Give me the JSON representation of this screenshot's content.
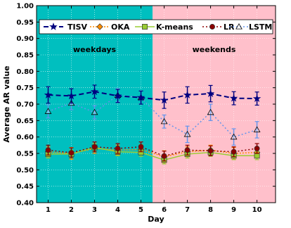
{
  "chart_data": {
    "type": "line",
    "xlabel": "Day",
    "ylabel": "Average AR value",
    "x": [
      1,
      2,
      3,
      4,
      5,
      6,
      7,
      8,
      9,
      10
    ],
    "x_ticks": [
      "1",
      "2",
      "3",
      "4",
      "5",
      "6",
      "7",
      "8",
      "9",
      "10"
    ],
    "xlim": [
      0.5,
      10.8
    ],
    "ylim": [
      0.4,
      1.0
    ],
    "y_ticks": [
      "0.40",
      "0.45",
      "0.50",
      "0.55",
      "0.60",
      "0.65",
      "0.70",
      "0.75",
      "0.80",
      "0.85",
      "0.90",
      "0.95",
      "1.00"
    ],
    "regions": [
      {
        "label": "weekdays",
        "x_range": [
          0.5,
          5.5
        ],
        "color": "#00bfbf"
      },
      {
        "label": "weekends",
        "x_range": [
          5.5,
          10.8
        ],
        "color": "#ffc0cb"
      }
    ],
    "legend_position": "top",
    "series": [
      {
        "name": "TISV",
        "color": "#000080",
        "marker": "star",
        "dash": "7,4",
        "values": [
          0.728,
          0.725,
          0.738,
          0.725,
          0.72,
          0.712,
          0.728,
          0.732,
          0.718,
          0.717
        ],
        "errors": [
          0.025,
          0.022,
          0.02,
          0.02,
          0.02,
          0.025,
          0.025,
          0.025,
          0.02,
          0.02
        ]
      },
      {
        "name": "OKA",
        "color": "#ff8c00",
        "marker": "diamond",
        "dash": "2,2",
        "values": [
          0.555,
          0.55,
          0.565,
          0.56,
          0.562,
          0.54,
          0.555,
          0.56,
          0.55,
          0.553
        ],
        "errors": [
          0.015,
          0.018,
          0.015,
          0.015,
          0.015,
          0.018,
          0.015,
          0.015,
          0.018,
          0.015
        ]
      },
      {
        "name": "K-means",
        "color": "#9acd32",
        "marker": "square",
        "dash": "",
        "values": [
          0.548,
          0.548,
          0.568,
          0.555,
          0.553,
          0.53,
          0.548,
          0.553,
          0.543,
          0.543
        ],
        "errors": [
          0.012,
          0.012,
          0.012,
          0.012,
          0.012,
          0.012,
          0.012,
          0.012,
          0.012,
          0.012
        ]
      },
      {
        "name": "LR",
        "color": "#8b0000",
        "marker": "circle",
        "dash": "2,3",
        "values": [
          0.56,
          0.552,
          0.57,
          0.565,
          0.57,
          0.542,
          0.56,
          0.558,
          0.555,
          0.565
        ],
        "errors": [
          0.015,
          0.015,
          0.015,
          0.015,
          0.015,
          0.015,
          0.015,
          0.015,
          0.015,
          0.015
        ]
      },
      {
        "name": "LSTM",
        "color": "#6495ed",
        "marker": "triangle",
        "dash": "2,3",
        "values": [
          0.678,
          0.703,
          0.675,
          0.727,
          0.72,
          0.647,
          0.608,
          0.675,
          0.6,
          0.622
        ],
        "errors": [
          0.02,
          0.02,
          0.02,
          0.02,
          0.02,
          0.02,
          0.025,
          0.025,
          0.025,
          0.025
        ]
      }
    ]
  }
}
